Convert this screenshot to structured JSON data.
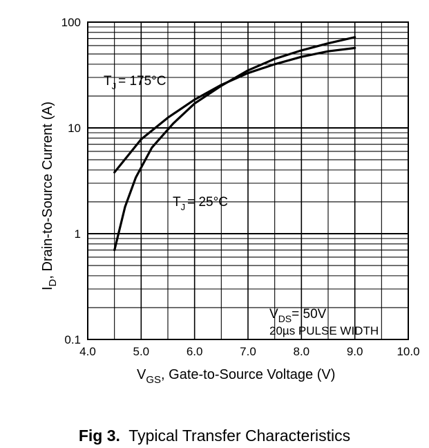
{
  "chart_data": {
    "type": "line",
    "xlabel": {
      "symbol": "V",
      "sub": "GS",
      "text": ", Gate-to-Source Voltage (V)"
    },
    "ylabel": {
      "symbol": "I",
      "sub": "D",
      "text": ",  Drain-to-Source Current (A)"
    },
    "xlim": [
      4.0,
      10.0
    ],
    "ylim": [
      0.1,
      100
    ],
    "yscale": "log",
    "x_ticks": [
      "4.0",
      "5.0",
      "6.0",
      "7.0",
      "8.0",
      "9.0",
      "10.0"
    ],
    "y_ticks": [
      "0.1",
      "1",
      "10",
      "100"
    ],
    "grid": true,
    "series": [
      {
        "name": "TJ = 175°C",
        "label": {
          "symbol": "T",
          "sub": "J",
          "text": "= 175°C"
        },
        "x": [
          4.5,
          5.0,
          5.5,
          6.0,
          6.5,
          7.0,
          7.5,
          8.0,
          8.5,
          9.0
        ],
        "y": [
          3.8,
          7.8,
          12.5,
          18.5,
          25.5,
          33,
          40,
          47,
          53,
          57
        ]
      },
      {
        "name": "TJ = 25°C",
        "label": {
          "symbol": "T",
          "sub": "J",
          "text": "= 25°C"
        },
        "x": [
          4.5,
          4.7,
          4.9,
          5.2,
          5.6,
          6.0,
          6.5,
          7.0,
          7.5,
          8.0,
          8.5,
          9.0
        ],
        "y": [
          0.7,
          1.8,
          3.4,
          6.5,
          11.0,
          17.0,
          25.0,
          35.0,
          45.0,
          54.0,
          63.0,
          72.0
        ]
      }
    ],
    "note": {
      "line1_symbol": "V",
      "line1_sub": "DS",
      "line1_text": "= 50V",
      "line2": "20µs PULSE WIDTH"
    }
  },
  "caption": {
    "bold": "Fig 3.",
    "text": "Typical Transfer Characteristics"
  }
}
